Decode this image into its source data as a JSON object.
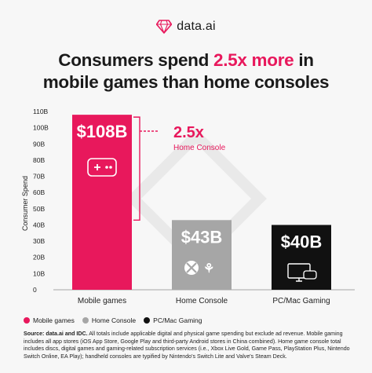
{
  "brand": {
    "name": "data.ai",
    "icon": "gem-icon"
  },
  "title": {
    "line1_pre": "Consumers spend ",
    "line1_highlight": "2.5x more",
    "line1_post": " in",
    "line2": "mobile games than home consoles"
  },
  "colors": {
    "accent": "#e8185c",
    "home": "#a6a6a6",
    "pc": "#111111"
  },
  "chart_data": {
    "type": "bar",
    "ylabel": "Consumer Spend",
    "ylim": [
      0,
      110
    ],
    "yticks": [
      "0",
      "10B",
      "20B",
      "30B",
      "40B",
      "50B",
      "60B",
      "70B",
      "80B",
      "90B",
      "100B",
      "110B"
    ],
    "categories": [
      "Mobile games",
      "Home Console",
      "PC/Mac Gaming"
    ],
    "values": [
      108,
      43,
      40
    ],
    "data_labels": [
      "$108B",
      "$43B",
      "$40B"
    ],
    "bar_colors": [
      "#e8185c",
      "#a6a6a6",
      "#111111"
    ],
    "bar_icons": [
      "gamepad-icon",
      "xbox-playstation-icons",
      "pc-gamepad-icon"
    ],
    "annotation": {
      "value": "2.5x",
      "label": "Home Console"
    }
  },
  "legend": [
    {
      "label": "Mobile games",
      "color": "#e8185c"
    },
    {
      "label": "Home Console",
      "color": "#a6a6a6"
    },
    {
      "label": "PC/Mac Gaming",
      "color": "#111111"
    }
  ],
  "source": {
    "lead": "Source: data.ai and IDC.",
    "text": " All totals include applicable digital and physical game spending but exclude ad revenue. Mobile gaming includes all app stores (iOS App Store, Google Play and third-party Android stores in China combined). Home game console total includes discs, digital games and gaming-related subscription services (i.e., Xbox Live Gold, Game Pass, PlayStation Plus, Nintendo Switch Online, EA Play); handheld consoles are typified by Nintendo's Switch Lite and Valve's Steam Deck."
  }
}
